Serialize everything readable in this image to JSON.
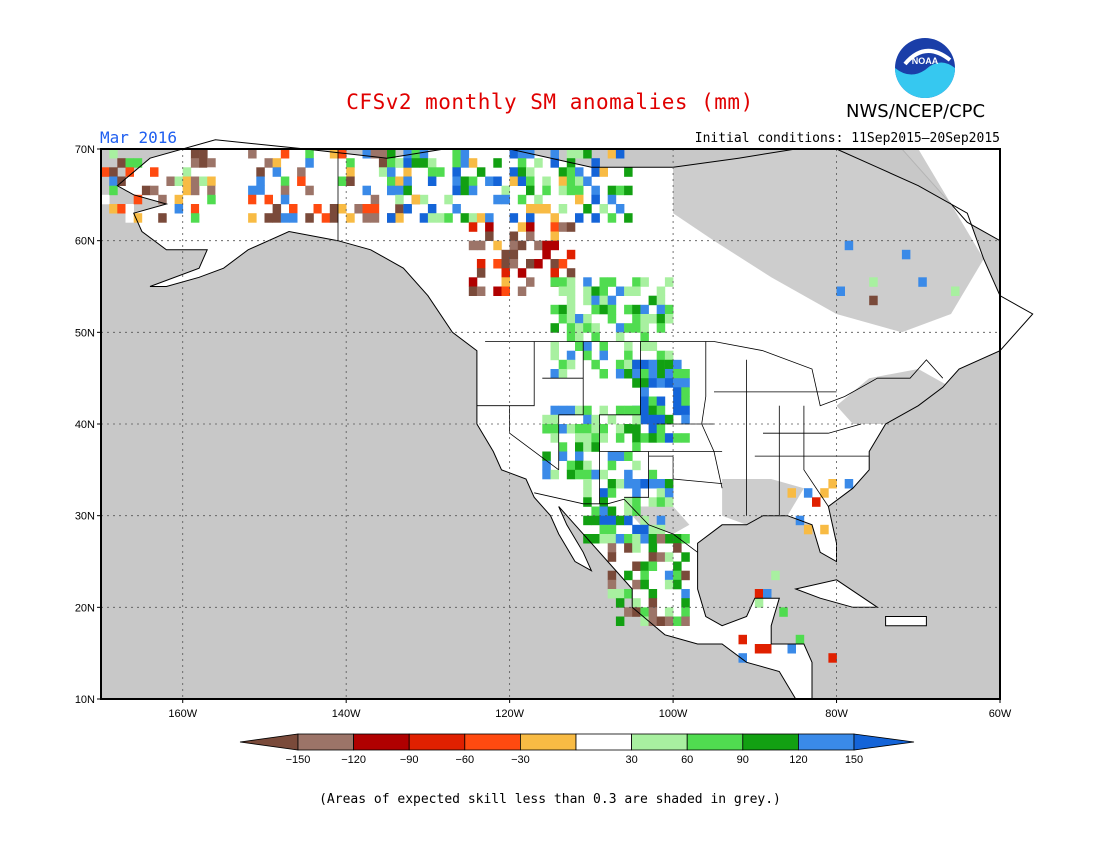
{
  "header": {
    "title": "CFSv2 monthly SM anomalies (mm)",
    "agency": "NWS/NCEP/CPC",
    "logo_text": "NOAA",
    "target_month": "Mar 2016",
    "initial_conditions": "Initial conditions: 11Sep2015—20Sep2015"
  },
  "map": {
    "lat_labels": [
      "70N",
      "60N",
      "50N",
      "40N",
      "30N",
      "20N",
      "10N"
    ],
    "lon_labels": [
      "160W",
      "140W",
      "120W",
      "100W",
      "80W",
      "60W"
    ],
    "lat_range": [
      10,
      70
    ],
    "lon_range": [
      -170,
      -60
    ],
    "colors": {
      "ocean_grey": "#c8c8c8",
      "land": "#ffffff",
      "coast": "#000000"
    }
  },
  "legend": {
    "bins": [
      {
        "color": "#7a4a3a"
      },
      {
        "color": "#9c7468"
      },
      {
        "color": "#b00000"
      },
      {
        "color": "#e02000"
      },
      {
        "color": "#ff4a10"
      },
      {
        "color": "#f8bb44"
      },
      {
        "color": "#ffffff"
      },
      {
        "color": "#a8f0a0"
      },
      {
        "color": "#50dc50"
      },
      {
        "color": "#12a012"
      },
      {
        "color": "#3a8ae8"
      },
      {
        "color": "#1464d8"
      }
    ],
    "tick_labels": [
      "-150",
      "-120",
      "-90",
      "-60",
      "-30",
      "30",
      "60",
      "90",
      "120",
      "150"
    ]
  },
  "footer": {
    "note": "(Areas of expected skill less than 0.3 are shaded in grey.)"
  }
}
